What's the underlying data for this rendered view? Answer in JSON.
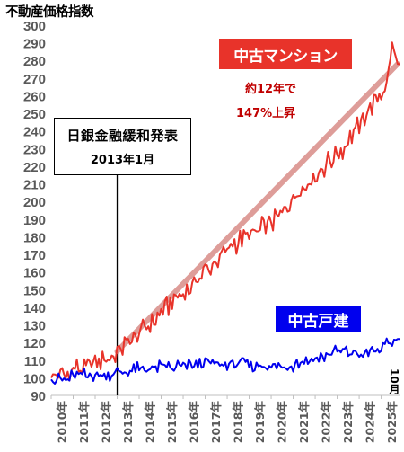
{
  "chart_data": {
    "type": "line",
    "title": "不動産価格指数",
    "ylim": [
      90,
      300
    ],
    "yticks": [
      90,
      100,
      110,
      120,
      130,
      140,
      150,
      160,
      170,
      180,
      190,
      200,
      210,
      220,
      230,
      240,
      250,
      260,
      270,
      280,
      290,
      300
    ],
    "x_tick_labels": [
      "2010年",
      "2011年",
      "2012年",
      "2013年",
      "2014年",
      "2015年",
      "2016年",
      "2017年",
      "2018年",
      "2019年",
      "2020年",
      "2021年",
      "2022年",
      "2023年",
      "2024年",
      "2025年"
    ],
    "x_end_label": "10月",
    "grid": false,
    "series": [
      {
        "name": "中古マンション",
        "color": "#e8332a",
        "annual_points": [
          [
            "2010-04",
            100
          ],
          [
            "2011-04",
            105
          ],
          [
            "2012-04",
            110
          ],
          [
            "2013-04",
            117
          ],
          [
            "2014-04",
            128
          ],
          [
            "2015-04",
            140
          ],
          [
            "2016-04",
            150
          ],
          [
            "2017-04",
            163
          ],
          [
            "2018-04",
            175
          ],
          [
            "2019-04",
            183
          ],
          [
            "2020-04",
            190
          ],
          [
            "2021-04",
            206
          ],
          [
            "2022-04",
            218
          ],
          [
            "2023-04",
            230
          ],
          [
            "2024-04",
            248
          ],
          [
            "2025-04",
            268
          ],
          [
            "2025-07",
            290
          ],
          [
            "2025-10",
            278
          ]
        ]
      },
      {
        "name": "中古戸建",
        "color": "#0000ee",
        "annual_points": [
          [
            "2010-04",
            99
          ],
          [
            "2011-04",
            101
          ],
          [
            "2012-04",
            102
          ],
          [
            "2013-04",
            103
          ],
          [
            "2014-04",
            105
          ],
          [
            "2015-04",
            106
          ],
          [
            "2016-04",
            107
          ],
          [
            "2017-04",
            108
          ],
          [
            "2018-04",
            108
          ],
          [
            "2019-04",
            107
          ],
          [
            "2020-04",
            106
          ],
          [
            "2021-04",
            108
          ],
          [
            "2022-04",
            112
          ],
          [
            "2023-04",
            115
          ],
          [
            "2024-04",
            113
          ],
          [
            "2025-04",
            118
          ],
          [
            "2025-10",
            122
          ]
        ]
      }
    ],
    "trendline": {
      "color": "#d98c88",
      "from": [
        "2013-01",
        115
      ],
      "to": [
        "2025-10",
        278
      ]
    },
    "event_marker": {
      "date": "2013-01",
      "label": "日銀金融緩和発表",
      "sublabel": "2013年1月"
    },
    "annotations": {
      "mansion_box": "中古マンション",
      "mansion_note_line1": "約12年で",
      "mansion_note_line2": "147%上昇",
      "kodate_box": "中古戸建"
    }
  }
}
